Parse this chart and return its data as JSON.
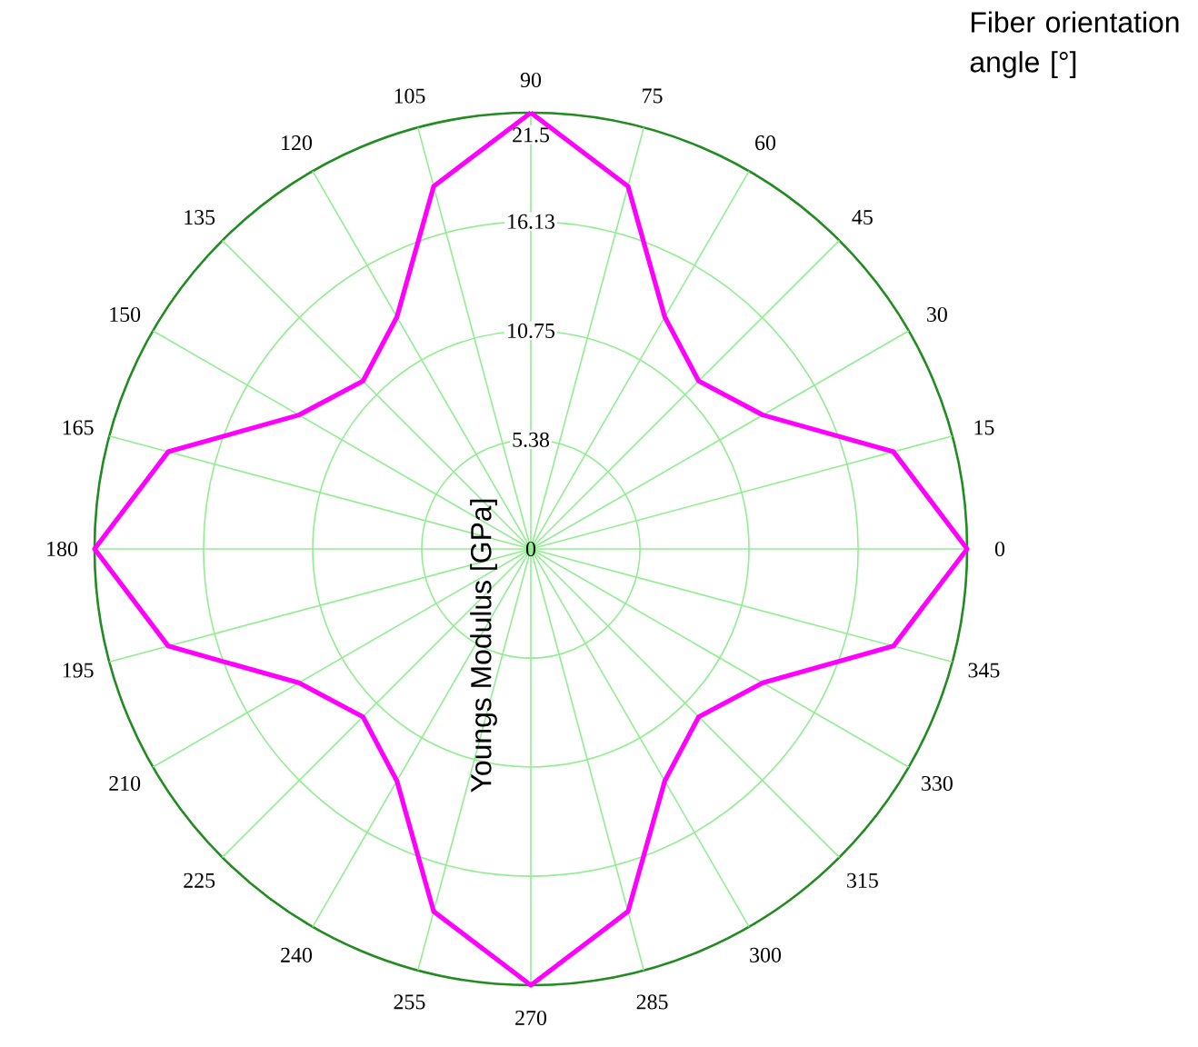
{
  "chart_data": {
    "type": "radar",
    "xlabel": "Fiber orientation angle [°]",
    "ylabel": "Youngs Modulus [GPa]",
    "categories": [
      "90",
      "75",
      "60",
      "45",
      "30",
      "15",
      "0",
      "345",
      "330",
      "315",
      "300",
      "285",
      "270",
      "255",
      "240",
      "225",
      "210",
      "195",
      "180",
      "165",
      "150",
      "135",
      "120",
      "105"
    ],
    "series": [
      {
        "color": "#ff00ff",
        "values": [
          21.5,
          18.5,
          13.2,
          11.7,
          13.2,
          18.5,
          21.5,
          18.5,
          13.2,
          11.7,
          13.2,
          18.5,
          21.5,
          18.5,
          13.2,
          11.7,
          13.2,
          18.5,
          21.5,
          18.5,
          13.2,
          11.7,
          13.2,
          18.5
        ]
      }
    ],
    "ylim": [
      0,
      21.5
    ],
    "yticks": [
      0,
      5.38,
      10.75,
      16.13,
      21.5
    ],
    "grid": true
  }
}
